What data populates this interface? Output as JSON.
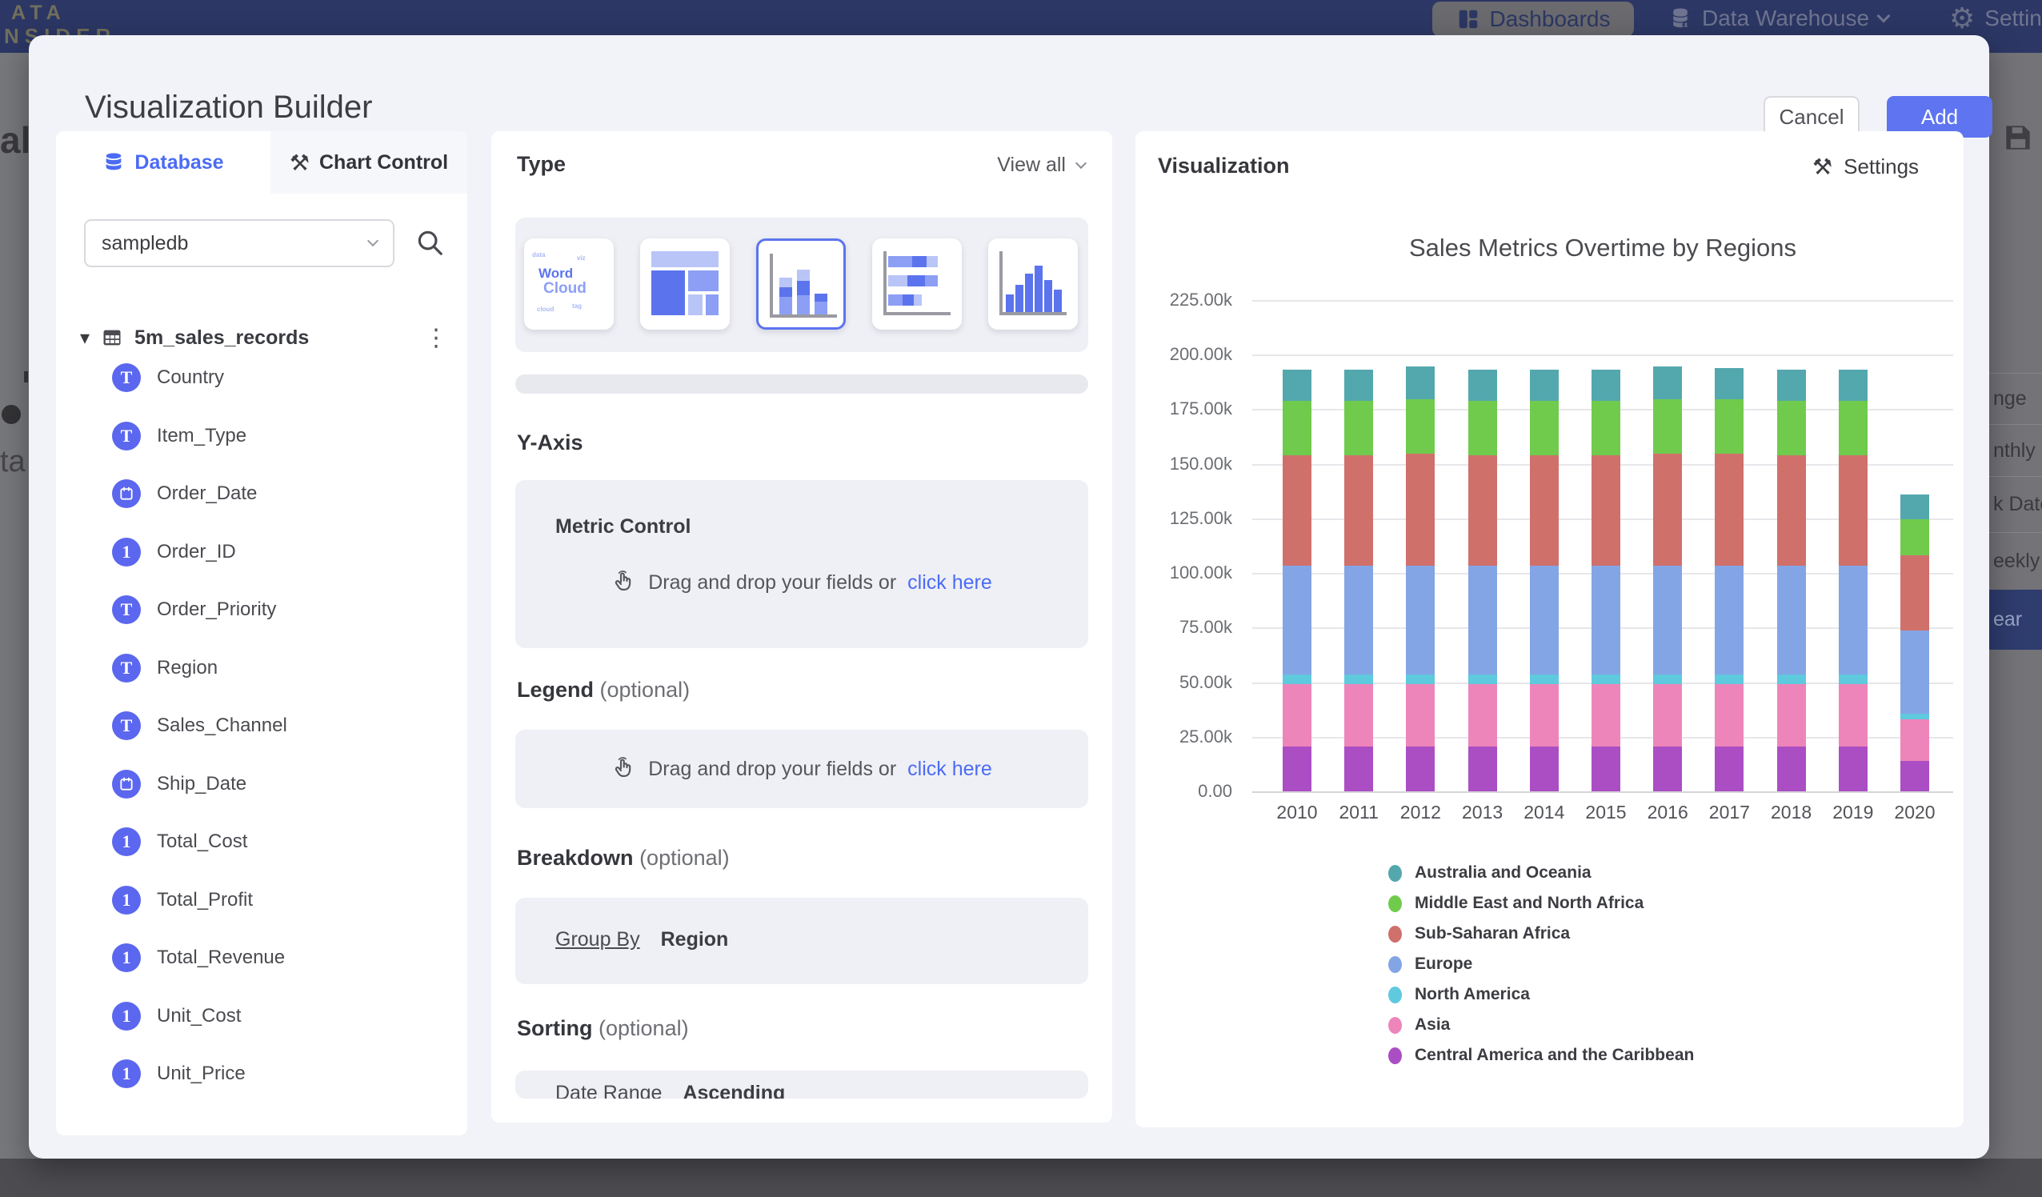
{
  "topbar": {
    "logo_line1": "ATA",
    "logo_line2": "NSIDER",
    "nav": [
      {
        "label": "Dashboards",
        "icon": "dashboards-grid-icon",
        "active": true
      },
      {
        "label": "Data Warehouse",
        "icon": "warehouse-database-icon",
        "has_chevron": true
      },
      {
        "label": "Settings",
        "icon": "gear-icon"
      }
    ]
  },
  "background": {
    "left_fragments": [
      "al",
      "ta"
    ],
    "right_menu_fragments": [
      {
        "label": "nge",
        "highlighted": false
      },
      {
        "label": "nthly",
        "highlighted": false
      },
      {
        "label": "k Date",
        "highlighted": false
      },
      {
        "label": "eekly",
        "highlighted": false
      },
      {
        "label": "ear",
        "highlighted": true
      }
    ]
  },
  "modal": {
    "title": "Visualization Builder",
    "cancel_label": "Cancel",
    "add_label": "Add"
  },
  "left_panel": {
    "tabs": [
      {
        "label": "Database",
        "active": true
      },
      {
        "label": "Chart Control",
        "active": false
      }
    ],
    "database_select": {
      "value": "sampledb"
    },
    "table": {
      "name": "5m_sales_records",
      "fields": [
        {
          "name": "Country",
          "type": "text"
        },
        {
          "name": "Item_Type",
          "type": "text"
        },
        {
          "name": "Order_Date",
          "type": "date"
        },
        {
          "name": "Order_ID",
          "type": "number"
        },
        {
          "name": "Order_Priority",
          "type": "text"
        },
        {
          "name": "Region",
          "type": "text"
        },
        {
          "name": "Sales_Channel",
          "type": "text"
        },
        {
          "name": "Ship_Date",
          "type": "date"
        },
        {
          "name": "Total_Cost",
          "type": "number"
        },
        {
          "name": "Total_Profit",
          "type": "number"
        },
        {
          "name": "Total_Revenue",
          "type": "number"
        },
        {
          "name": "Unit_Cost",
          "type": "number"
        },
        {
          "name": "Unit_Price",
          "type": "number"
        }
      ]
    }
  },
  "middle_panel": {
    "type_section": {
      "title": "Type",
      "view_all": "View all",
      "cards": [
        {
          "name": "word-cloud",
          "selected": false
        },
        {
          "name": "treemap",
          "selected": false
        },
        {
          "name": "stacked-column",
          "selected": true
        },
        {
          "name": "stacked-bar",
          "selected": false
        },
        {
          "name": "histogram",
          "selected": false
        }
      ]
    },
    "y_axis": {
      "title": "Y-Axis",
      "card_title": "Metric Control",
      "drop_text": "Drag and drop your fields or",
      "drop_link": "click here"
    },
    "legend_section": {
      "title": "Legend",
      "optional": "(optional)",
      "drop_text": "Drag and drop your fields or",
      "drop_link": "click here"
    },
    "breakdown": {
      "title": "Breakdown",
      "optional": "(optional)",
      "group_by_label": "Group By",
      "group_by_value": "Region"
    },
    "sorting": {
      "title": "Sorting",
      "optional": "(optional)",
      "row_label": "Date Range",
      "row_value": "Ascending"
    }
  },
  "right_panel": {
    "title": "Visualization",
    "settings_label": "Settings"
  },
  "accent_colors": {
    "primary_blue": "#4b6bf5",
    "add_button": "#5e74f1",
    "selected_card_border": "#5b74ee",
    "field_icon": "#5b67ee"
  },
  "chart_data": {
    "type": "bar",
    "stacked": true,
    "title": "Sales Metrics Overtime by Regions",
    "xlabel": "",
    "ylabel": "",
    "categories": [
      "2010",
      "2011",
      "2012",
      "2013",
      "2014",
      "2015",
      "2016",
      "2017",
      "2018",
      "2019",
      "2020"
    ],
    "series": [
      {
        "name": "Australia and Oceania",
        "color": "#53a8ad",
        "values": [
          14000,
          14000,
          15000,
          14000,
          14000,
          14000,
          15000,
          14500,
          14000,
          14000,
          11500
        ]
      },
      {
        "name": "Middle East and North Africa",
        "color": "#70cb4c",
        "values": [
          25000,
          25000,
          25000,
          25000,
          25000,
          25000,
          25000,
          25000,
          25000,
          25000,
          16500
        ]
      },
      {
        "name": "Sub-Saharan Africa",
        "color": "#d0706b",
        "values": [
          50500,
          50500,
          51000,
          50500,
          50500,
          50500,
          51000,
          51000,
          50500,
          50500,
          34500
        ]
      },
      {
        "name": "Europe",
        "color": "#84a5e5",
        "values": [
          50000,
          50000,
          50000,
          50000,
          50000,
          50000,
          50000,
          50000,
          50000,
          50000,
          38000
        ]
      },
      {
        "name": "North America",
        "color": "#5fc9de",
        "values": [
          4500,
          4500,
          4500,
          4500,
          4500,
          4500,
          4500,
          4500,
          4500,
          4500,
          2500
        ]
      },
      {
        "name": "Asia",
        "color": "#ee85ba",
        "values": [
          28500,
          28500,
          28500,
          28500,
          28500,
          28500,
          28500,
          28500,
          28500,
          28500,
          19000
        ]
      },
      {
        "name": "Central America and the Caribbean",
        "color": "#ab4ec4",
        "values": [
          20500,
          20500,
          20500,
          20500,
          20500,
          20500,
          20500,
          20500,
          20500,
          20500,
          14000
        ]
      }
    ],
    "ylim": [
      0,
      225000
    ],
    "yticks": {
      "values": [
        0,
        25000,
        50000,
        75000,
        100000,
        125000,
        150000,
        175000,
        200000,
        225000
      ],
      "labels": [
        "0.00",
        "25.00k",
        "50.00k",
        "75.00k",
        "100.00k",
        "125.00k",
        "150.00k",
        "175.00k",
        "200.00k",
        "225.00k"
      ]
    },
    "grid": true,
    "legend_position": "bottom-left"
  }
}
